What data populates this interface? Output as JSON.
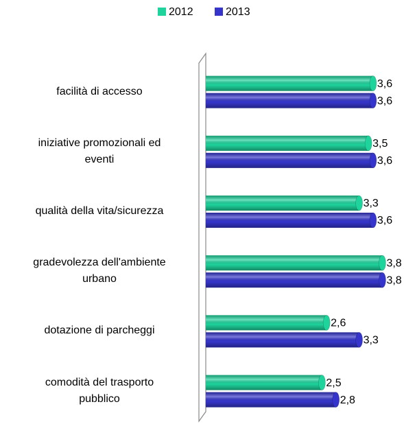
{
  "chart_data": {
    "type": "bar",
    "orientation": "horizontal",
    "categories": [
      "facilità di accesso",
      "iniziative promozionali ed\neventi",
      "qualità della vita/sicurezza",
      "gradevolezza dell'ambiente\nurbano",
      "dotazione di parcheggi",
      "comodità del trasporto\npubblico"
    ],
    "series": [
      {
        "name": "2012",
        "color": "#1ed39c",
        "values": [
          3.6,
          3.5,
          3.3,
          3.8,
          2.6,
          2.5
        ],
        "value_labels": [
          "3,6",
          "3,5",
          "3,3",
          "3,8",
          "2,6",
          "2,5"
        ]
      },
      {
        "name": "2013",
        "color": "#3535cc",
        "values": [
          3.6,
          3.6,
          3.6,
          3.8,
          3.3,
          2.8
        ],
        "value_labels": [
          "3,6",
          "3,6",
          "3,6",
          "3,8",
          "3,3",
          "2,8"
        ]
      }
    ],
    "xlim": [
      0,
      4
    ],
    "legend": "top"
  }
}
